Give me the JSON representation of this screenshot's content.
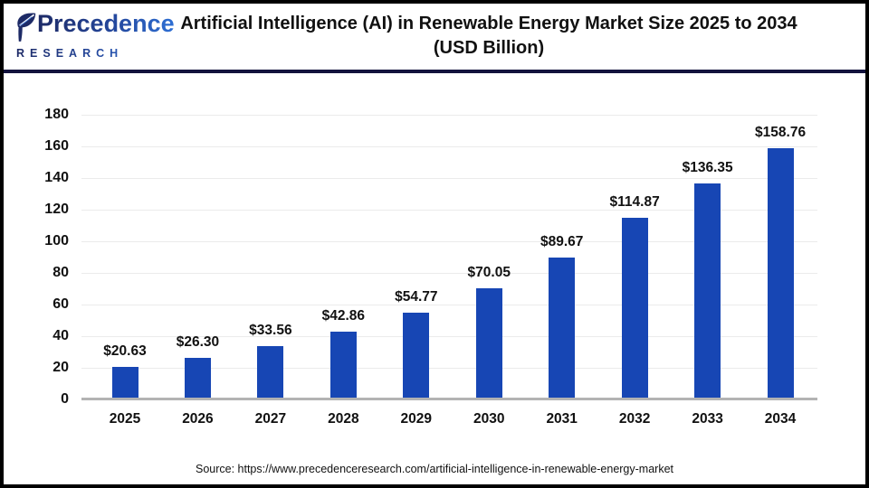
{
  "logo": {
    "brand": "Precedence",
    "sub": "RESEARCH"
  },
  "header": {
    "title_line1": "Artificial Intelligence (AI) in Renewable Energy Market Size 2025 to 2034",
    "title_line2": "(USD Billion)"
  },
  "chart_data": {
    "type": "bar",
    "title": "Artificial Intelligence (AI) in Renewable Energy Market Size 2025 to 2034 (USD Billion)",
    "categories": [
      "2025",
      "2026",
      "2027",
      "2028",
      "2029",
      "2030",
      "2031",
      "2032",
      "2033",
      "2034"
    ],
    "values": [
      20.63,
      26.3,
      33.56,
      42.86,
      54.77,
      70.05,
      89.67,
      114.87,
      136.35,
      158.76
    ],
    "value_labels": [
      "$20.63",
      "$26.30",
      "$33.56",
      "$42.86",
      "$54.77",
      "$70.05",
      "$89.67",
      "$114.87",
      "$136.35",
      "$158.76"
    ],
    "xlabel": "",
    "ylabel": "",
    "ylim": [
      0,
      180
    ],
    "ytick_step": 20,
    "yticks": [
      0,
      20,
      40,
      60,
      80,
      100,
      120,
      140,
      160,
      180
    ],
    "grid": true,
    "legend": false,
    "bar_color": "#1746b4"
  },
  "colors": {
    "bar": "#1746b4",
    "divider": "#13133d",
    "grid": "#ebebeb",
    "axis": "#b3b3b3",
    "logo_navy": "#1d2a66",
    "logo_blue": "#2e6fd4",
    "text": "#111111"
  },
  "footer": {
    "source_text": "Source: https://www.precedenceresearch.com/artificial-intelligence-in-renewable-energy-market"
  }
}
